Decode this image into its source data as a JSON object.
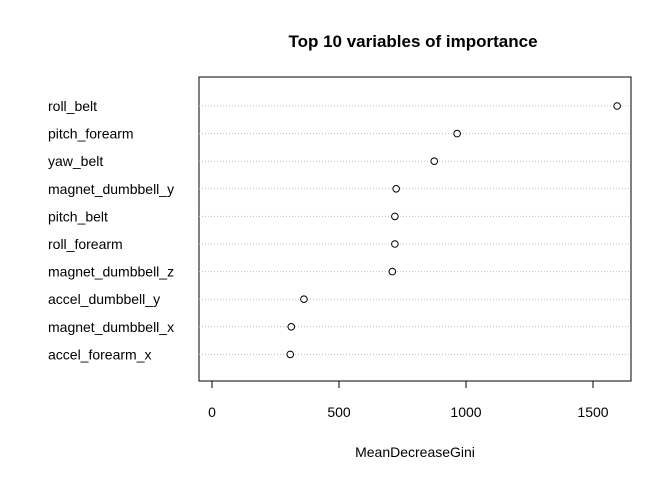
{
  "chart_data": {
    "type": "scatter",
    "title": "Top 10 variables of importance",
    "xlabel": "MeanDecreaseGini",
    "ylabel": "",
    "xlim": [
      -50,
      1650
    ],
    "xticks": [
      "0",
      "500",
      "1000",
      "1500"
    ],
    "xtick_values": [
      0,
      500,
      1000,
      1500
    ],
    "grid": "horizontal dotted",
    "categories": [
      "roll_belt",
      "pitch_forearm",
      "yaw_belt",
      "magnet_dumbbell_y",
      "pitch_belt",
      "roll_forearm",
      "magnet_dumbbell_z",
      "accel_dumbbell_y",
      "magnet_dumbbell_x",
      "accel_forearm_x"
    ],
    "values": [
      1595,
      965,
      875,
      725,
      720,
      720,
      710,
      362,
      312,
      308
    ]
  }
}
